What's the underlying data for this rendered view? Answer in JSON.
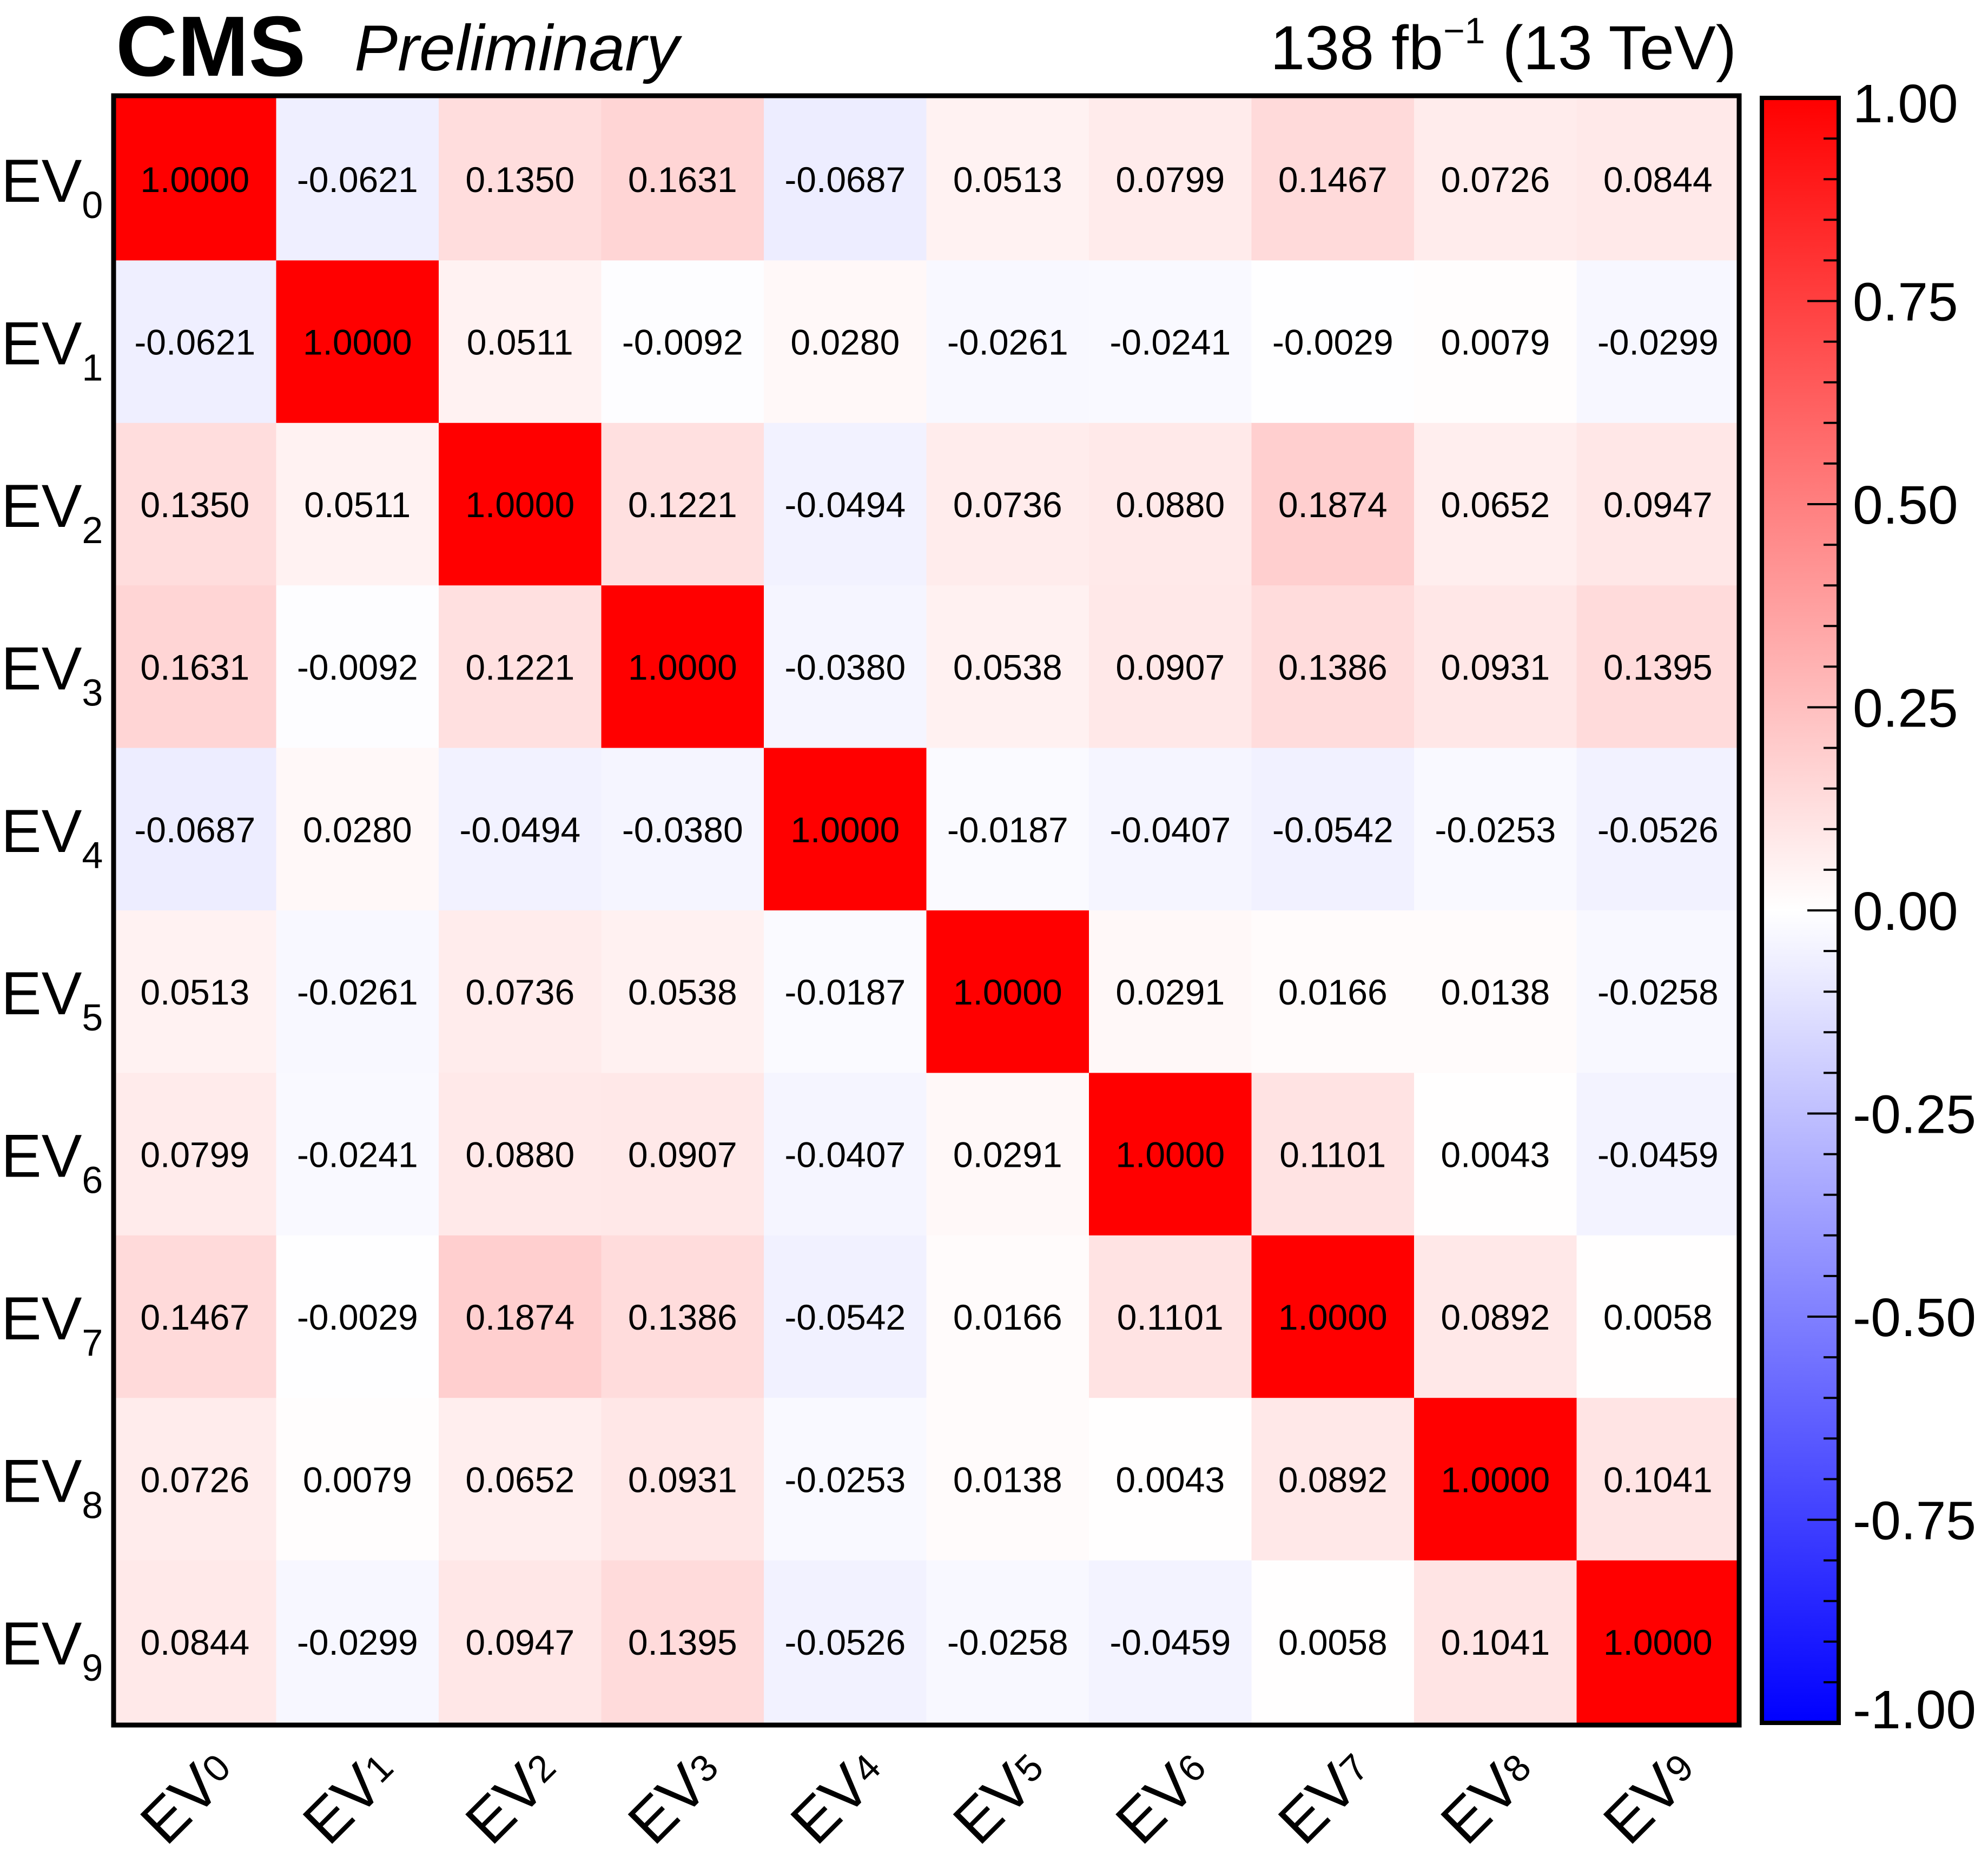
{
  "header": {
    "cms": "CMS",
    "preliminary": "Preliminary",
    "lumi_main": "138 fb",
    "lumi_exponent": "−1",
    "lumi_energy": " (13 TeV)"
  },
  "colors": {
    "negative": "#0000ff",
    "neutral": "#ffffff",
    "positive": "#ff0000",
    "frame": "#000000",
    "text": "#000000"
  },
  "chart_data": {
    "type": "heatmap",
    "title": "",
    "label_prefix": "EV",
    "x_labels": [
      "0",
      "1",
      "2",
      "3",
      "4",
      "5",
      "6",
      "7",
      "8",
      "9"
    ],
    "y_labels": [
      "0",
      "1",
      "2",
      "3",
      "4",
      "5",
      "6",
      "7",
      "8",
      "9"
    ],
    "zlim": [
      -1,
      1
    ],
    "colorbar_ticks": [
      "1.00",
      "0.75",
      "0.50",
      "0.25",
      "0.00",
      "-0.25",
      "-0.50",
      "-0.75",
      "-1.00"
    ],
    "colorbar_tick_values": [
      1.0,
      0.75,
      0.5,
      0.25,
      0.0,
      -0.25,
      -0.5,
      -0.75,
      -1.0
    ],
    "values": [
      [
        1.0,
        -0.0621,
        0.135,
        0.1631,
        -0.0687,
        0.0513,
        0.0799,
        0.1467,
        0.0726,
        0.0844
      ],
      [
        -0.0621,
        1.0,
        0.0511,
        -0.0092,
        0.028,
        -0.0261,
        -0.0241,
        -0.0029,
        0.0079,
        -0.0299
      ],
      [
        0.135,
        0.0511,
        1.0,
        0.1221,
        -0.0494,
        0.0736,
        0.088,
        0.1874,
        0.0652,
        0.0947
      ],
      [
        0.1631,
        -0.0092,
        0.1221,
        1.0,
        -0.038,
        0.0538,
        0.0907,
        0.1386,
        0.0931,
        0.1395
      ],
      [
        -0.0687,
        0.028,
        -0.0494,
        -0.038,
        1.0,
        -0.0187,
        -0.0407,
        -0.0542,
        -0.0253,
        -0.0526
      ],
      [
        0.0513,
        -0.0261,
        0.0736,
        0.0538,
        -0.0187,
        1.0,
        0.0291,
        0.0166,
        0.0138,
        -0.0258
      ],
      [
        0.0799,
        -0.0241,
        0.088,
        0.0907,
        -0.0407,
        0.0291,
        1.0,
        0.1101,
        0.0043,
        -0.0459
      ],
      [
        0.1467,
        -0.0029,
        0.1874,
        0.1386,
        -0.0542,
        0.0166,
        0.1101,
        1.0,
        0.0892,
        0.0058
      ],
      [
        0.0726,
        0.0079,
        0.0652,
        0.0931,
        -0.0253,
        0.0138,
        0.0043,
        0.0892,
        1.0,
        0.1041
      ],
      [
        0.0844,
        -0.0299,
        0.0947,
        0.1395,
        -0.0526,
        -0.0258,
        -0.0459,
        0.0058,
        0.1041,
        1.0
      ]
    ]
  }
}
